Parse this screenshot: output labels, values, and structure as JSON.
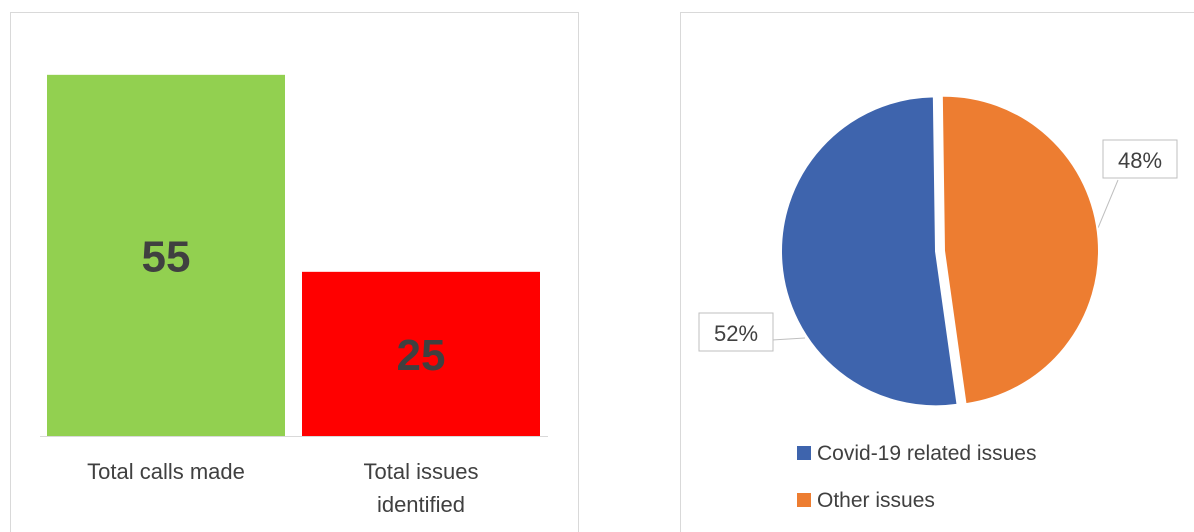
{
  "chart_data": [
    {
      "type": "bar",
      "categories": [
        "Total calls made",
        "Total issues identified"
      ],
      "values": [
        55,
        25
      ],
      "colors": [
        "#92d050",
        "#ff0000"
      ],
      "ylim": [
        0,
        60
      ]
    },
    {
      "type": "pie",
      "categories": [
        "Covid-19 related issues",
        "Other issues"
      ],
      "values": [
        52,
        48
      ],
      "value_labels": [
        "52%",
        "48%"
      ],
      "colors": [
        "#3e64ad",
        "#ed7d31"
      ],
      "legend": "bottom"
    }
  ]
}
